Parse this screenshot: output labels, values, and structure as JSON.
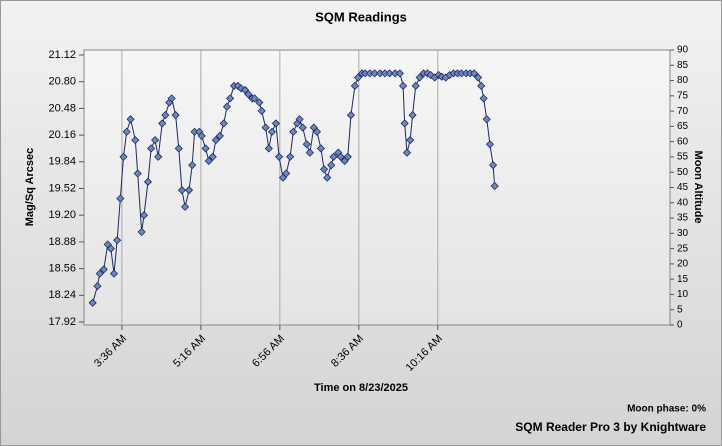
{
  "chart_data": {
    "type": "line",
    "title": "SQM Readings",
    "xlabel": "Time on 8/23/2025",
    "ylabel": "Mag/Sq Arcsec",
    "y2label": "Moon Altitude",
    "moon_phase": "Moon phase: 0%",
    "credit": "SQM Reader Pro 3 by Knightware",
    "color": "#6f86c4",
    "line_color": "#1c2a5a",
    "grid": true,
    "x": [
      179,
      185,
      188,
      193,
      198,
      202,
      206,
      210,
      214,
      218,
      222,
      227,
      233,
      236,
      241,
      244,
      249,
      253,
      258,
      262,
      267,
      271,
      276,
      279,
      284,
      288,
      292,
      296,
      301,
      305,
      308,
      314,
      317,
      322,
      326,
      331,
      335,
      340,
      345,
      349,
      353,
      358,
      363,
      367,
      372,
      376,
      381,
      384,
      390,
      393,
      398,
      402,
      406,
      411,
      415,
      420,
      424,
      429,
      433,
      438,
      441,
      445,
      450,
      454,
      459,
      463,
      468,
      472,
      476,
      481,
      484,
      490,
      493,
      498,
      502,
      506,
      511,
      515,
      520,
      524,
      530,
      536,
      543,
      549,
      555,
      562,
      568,
      572,
      574,
      577,
      581,
      584,
      588,
      593,
      598,
      603,
      607,
      612,
      617,
      621,
      626,
      631,
      636,
      641,
      646,
      652,
      657,
      662,
      667,
      671,
      674,
      678,
      682,
      686,
      688
    ],
    "values": [
      18.15,
      18.35,
      18.5,
      18.55,
      18.85,
      18.8,
      18.5,
      18.9,
      19.4,
      19.9,
      20.2,
      20.35,
      20.1,
      19.7,
      19.0,
      19.2,
      19.6,
      20.0,
      20.1,
      19.9,
      20.3,
      20.4,
      20.55,
      20.6,
      20.4,
      20.0,
      19.5,
      19.3,
      19.5,
      19.8,
      20.2,
      20.2,
      20.15,
      20.0,
      19.85,
      19.9,
      20.1,
      20.15,
      20.3,
      20.5,
      20.6,
      20.75,
      20.75,
      20.72,
      20.7,
      20.65,
      20.6,
      20.6,
      20.55,
      20.45,
      20.25,
      20.0,
      20.2,
      20.3,
      19.9,
      19.65,
      19.7,
      19.9,
      20.2,
      20.3,
      20.35,
      20.25,
      20.05,
      19.95,
      20.25,
      20.2,
      20.0,
      19.75,
      19.65,
      19.8,
      19.9,
      19.95,
      19.9,
      19.85,
      19.9,
      20.4,
      20.75,
      20.85,
      20.9,
      20.9,
      20.9,
      20.9,
      20.9,
      20.9,
      20.9,
      20.9,
      20.9,
      20.75,
      20.3,
      19.95,
      20.1,
      20.4,
      20.75,
      20.85,
      20.9,
      20.9,
      20.88,
      20.85,
      20.88,
      20.86,
      20.85,
      20.88,
      20.9,
      20.9,
      20.9,
      20.9,
      20.9,
      20.9,
      20.85,
      20.75,
      20.6,
      20.35,
      20.05,
      19.8,
      19.55
    ],
    "xlim": [
      168,
      910
    ],
    "xticks": [
      {
        "value": 216,
        "label": "3:36 AM"
      },
      {
        "value": 316,
        "label": "5:16 AM"
      },
      {
        "value": 416,
        "label": "6:56 AM"
      },
      {
        "value": 516,
        "label": "8:36 AM"
      },
      {
        "value": 616,
        "label": "10:16 AM"
      }
    ],
    "ylim": [
      17.92,
      21.12
    ],
    "yticks": [
      17.92,
      18.24,
      18.56,
      18.88,
      {
        "value": 19.2,
        "label": "19.20"
      },
      19.52,
      19.84,
      20.16,
      20.48,
      {
        "value": 20.8,
        "label": "20.80"
      },
      21.12
    ],
    "y2lim": [
      0,
      90
    ],
    "y2ticks": [
      0,
      5,
      10,
      15,
      20,
      25,
      30,
      35,
      40,
      45,
      50,
      55,
      60,
      65,
      70,
      75,
      80,
      85,
      90
    ]
  }
}
